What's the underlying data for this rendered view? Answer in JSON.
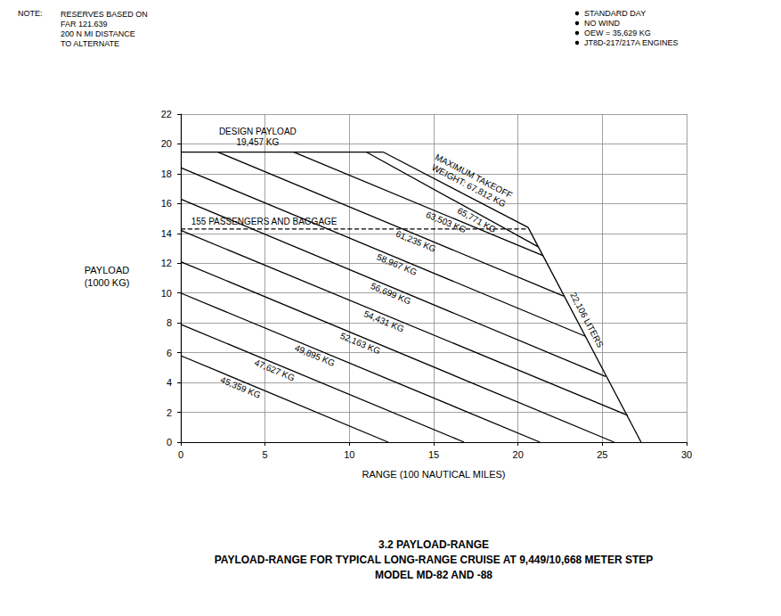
{
  "chart_data": {
    "type": "line",
    "title": "3.2 PAYLOAD-RANGE",
    "subtitle": [
      "PAYLOAD-RANGE FOR TYPICAL LONG-RANGE CRUISE AT 9,449/10,668 METER STEP",
      "MODEL MD-82 AND -88"
    ],
    "note_heading": "NOTE:",
    "note": [
      "RESERVES BASED ON",
      "FAR 121.639",
      "200 N MI DISTANCE",
      "TO ALTERNATE"
    ],
    "conditions": [
      "STANDARD DAY",
      "NO WIND",
      "OEW = 35,629 KG",
      "JT8D-217/217A ENGINES"
    ],
    "x_label": "RANGE (100 NAUTICAL MILES)",
    "y_label": [
      "PAYLOAD",
      "(1000 KG)"
    ],
    "xlim": [
      0,
      30
    ],
    "xticks": [
      0,
      5,
      10,
      15,
      20,
      25,
      30
    ],
    "ylim": [
      0,
      22
    ],
    "yticks": [
      0,
      2,
      4,
      6,
      8,
      10,
      12,
      14,
      16,
      18,
      20,
      22
    ],
    "grid": true,
    "series": [
      {
        "label": [
          "DESIGN PAYLOAD",
          "19,457 KG"
        ],
        "x": [
          0,
          12
        ],
        "values": [
          19.457,
          19.457
        ],
        "color": "#000000",
        "line_style": "solid"
      },
      {
        "label": [
          "MAXIMUM TAKEOFF",
          "WEIGHT: 67,812 KG"
        ],
        "x": [
          12,
          20.6
        ],
        "values": [
          19.457,
          14.4
        ],
        "color": "#000000",
        "line_style": "solid"
      },
      {
        "label": "65,771 KG",
        "x": [
          11.0,
          21.2
        ],
        "values": [
          19.457,
          13.1
        ],
        "color": "#000000",
        "line_style": "solid"
      },
      {
        "label": "63,503 KG",
        "x": [
          6.7,
          21.5
        ],
        "values": [
          19.457,
          12.5
        ],
        "color": "#000000",
        "line_style": "solid"
      },
      {
        "label": "61,235 KG",
        "x": [
          2.2,
          22.7
        ],
        "values": [
          19.457,
          9.8
        ],
        "color": "#000000",
        "line_style": "solid"
      },
      {
        "label": "58,967 KG",
        "x": [
          0,
          24.0
        ],
        "values": [
          18.4,
          7.1
        ],
        "color": "#000000",
        "line_style": "solid"
      },
      {
        "label": "56,699 KG",
        "x": [
          0,
          25.2
        ],
        "values": [
          16.3,
          4.4
        ],
        "color": "#000000",
        "line_style": "solid"
      },
      {
        "label": "54,431 KG",
        "x": [
          0,
          26.5
        ],
        "values": [
          14.2,
          1.8
        ],
        "color": "#000000",
        "line_style": "solid"
      },
      {
        "label": "52,163 KG",
        "x": [
          0,
          25.7
        ],
        "values": [
          12.1,
          0
        ],
        "color": "#000000",
        "line_style": "solid"
      },
      {
        "label": "49,895 KG",
        "x": [
          0,
          21.3
        ],
        "values": [
          10.0,
          0
        ],
        "color": "#000000",
        "line_style": "solid"
      },
      {
        "label": "47,627 KG",
        "x": [
          0,
          16.8
        ],
        "values": [
          7.9,
          0
        ],
        "color": "#000000",
        "line_style": "solid"
      },
      {
        "label": "45,359 KG",
        "x": [
          0,
          12.3
        ],
        "values": [
          5.8,
          0
        ],
        "color": "#000000",
        "line_style": "solid"
      },
      {
        "label": "155 PASSENGERS AND BAGGAGE",
        "x": [
          0,
          20.6
        ],
        "values": [
          14.3,
          14.3
        ],
        "color": "#000000",
        "line_style": "dashed"
      },
      {
        "label": "22,106 LITERS",
        "x": [
          20.6,
          27.3
        ],
        "values": [
          14.4,
          0
        ],
        "color": "#000000",
        "line_style": "solid"
      }
    ]
  }
}
